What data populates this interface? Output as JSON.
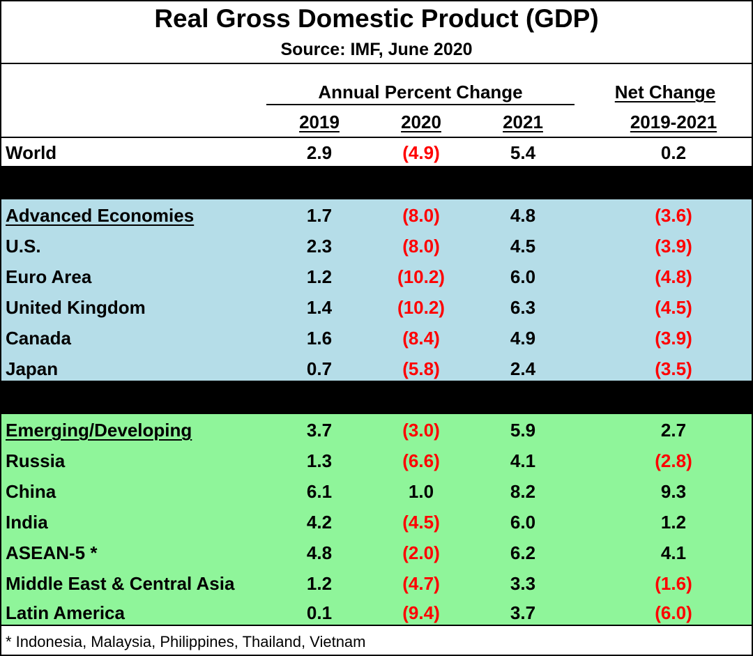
{
  "title": "Real Gross Domestic Product (GDP)",
  "source": "Source:  IMF, June 2020",
  "headers": {
    "group_label": "Annual Percent Change",
    "net_label": "Net Change",
    "col_2019": "2019",
    "col_2020": "2020",
    "col_2021": "2021",
    "col_net": "2019-2021"
  },
  "colors": {
    "negative": "#ff0000",
    "advanced_band": "#b5dde8",
    "emerging_band": "#8ff59a"
  },
  "world": {
    "name": "World",
    "v2019": "2.9",
    "v2020": "(4.9)",
    "v2021": "5.4",
    "net": "0.2"
  },
  "advanced": [
    {
      "name": "Advanced Economies",
      "v2019": "1.7",
      "v2020": "(8.0)",
      "v2021": "4.8",
      "net": "(3.6)"
    },
    {
      "name": "U.S.",
      "v2019": "2.3",
      "v2020": "(8.0)",
      "v2021": "4.5",
      "net": "(3.9)"
    },
    {
      "name": "Euro Area",
      "v2019": "1.2",
      "v2020": "(10.2)",
      "v2021": "6.0",
      "net": "(4.8)"
    },
    {
      "name": "United Kingdom",
      "v2019": "1.4",
      "v2020": "(10.2)",
      "v2021": "6.3",
      "net": "(4.5)"
    },
    {
      "name": "Canada",
      "v2019": "1.6",
      "v2020": "(8.4)",
      "v2021": "4.9",
      "net": "(3.9)"
    },
    {
      "name": "Japan",
      "v2019": "0.7",
      "v2020": "(5.8)",
      "v2021": "2.4",
      "net": "(3.5)"
    }
  ],
  "emerging": [
    {
      "name": "Emerging/Developing",
      "v2019": "3.7",
      "v2020": "(3.0)",
      "v2021": "5.9",
      "net": "2.7"
    },
    {
      "name": "Russia",
      "v2019": "1.3",
      "v2020": "(6.6)",
      "v2021": "4.1",
      "net": "(2.8)"
    },
    {
      "name": "China",
      "v2019": "6.1",
      "v2020": "1.0",
      "v2021": "8.2",
      "net": "9.3"
    },
    {
      "name": "India",
      "v2019": "4.2",
      "v2020": "(4.5)",
      "v2021": "6.0",
      "net": "1.2"
    },
    {
      "name": "ASEAN-5 *",
      "v2019": "4.8",
      "v2020": "(2.0)",
      "v2021": "6.2",
      "net": "4.1"
    },
    {
      "name": "Middle East & Central Asia",
      "v2019": "1.2",
      "v2020": "(4.7)",
      "v2021": "3.3",
      "net": "(1.6)"
    },
    {
      "name": "Latin America",
      "v2019": "0.1",
      "v2020": "(9.4)",
      "v2021": "3.7",
      "net": "(6.0)"
    }
  ],
  "footnote": "* Indonesia, Malaysia, Philippines, Thailand, Vietnam"
}
